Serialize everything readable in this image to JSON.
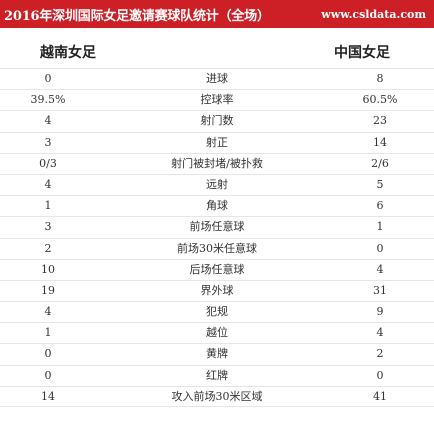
{
  "header": {
    "title": "2016年深圳国际女足邀请赛球队统计（全场）",
    "site": "www.csldata.com",
    "background": "#cc1f26"
  },
  "teams": {
    "left": "越南女足",
    "right": "中国女足"
  },
  "stats": [
    {
      "left": "0",
      "label": "进球",
      "right": "8"
    },
    {
      "left": "39.5%",
      "label": "控球率",
      "right": "60.5%"
    },
    {
      "left": "4",
      "label": "射门数",
      "right": "23"
    },
    {
      "left": "3",
      "label": "射正",
      "right": "14"
    },
    {
      "left": "0/3",
      "label": "射门被封堵/被扑救",
      "right": "2/6"
    },
    {
      "left": "4",
      "label": "远射",
      "right": "5"
    },
    {
      "left": "1",
      "label": "角球",
      "right": "6"
    },
    {
      "left": "3",
      "label": "前场任意球",
      "right": "1"
    },
    {
      "left": "2",
      "label": "前场30米任意球",
      "right": "0"
    },
    {
      "left": "10",
      "label": "后场任意球",
      "right": "4"
    },
    {
      "left": "19",
      "label": "界外球",
      "right": "31"
    },
    {
      "left": "4",
      "label": "犯规",
      "right": "9"
    },
    {
      "left": "1",
      "label": "越位",
      "right": "4"
    },
    {
      "left": "0",
      "label": "黄牌",
      "right": "2"
    },
    {
      "left": "0",
      "label": "红牌",
      "right": "0"
    },
    {
      "left": "14",
      "label": "攻入前场30米区域",
      "right": "41"
    }
  ]
}
